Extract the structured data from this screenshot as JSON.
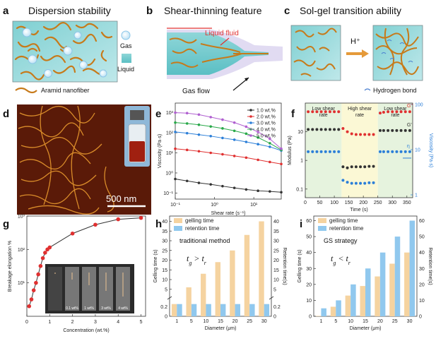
{
  "panels": {
    "a": {
      "letter": "a",
      "title": "Dispersion stability",
      "gas": "Gas",
      "liquid": "Liquid",
      "fiber": "Aramid nanofiber"
    },
    "b": {
      "letter": "b",
      "title": "Shear-thinning feature",
      "liquid_fluid": "Liquid fluid",
      "gas_flow": "Gas flow"
    },
    "c": {
      "letter": "c",
      "title": "Sol-gel transition ability",
      "proton": "H⁺",
      "bond": "Hydrogen bond"
    },
    "d": {
      "letter": "d",
      "scalebar": "500 nm"
    },
    "g": {
      "letter": "g",
      "insets": [
        "0.1 wt%",
        "1 wt%",
        "3 wt%",
        "4 wt%"
      ]
    },
    "h": {
      "letter": "h",
      "method": "traditional method",
      "relation": "t_g > t_r"
    },
    "i": {
      "letter": "i",
      "method": "GS strategy",
      "relation": "t_g < t_r"
    }
  },
  "colors": {
    "aramid": "#c77a1a",
    "liquid": "#5bbfc4",
    "gelling": "#f5d3a0",
    "retention": "#90c8ee",
    "red": "#e03030",
    "blue": "#2c7fd8",
    "black": "#333333"
  },
  "chart_data": [
    {
      "panel": "e",
      "type": "line",
      "xscale": "log",
      "yscale": "log",
      "xlabel": "Shear rate (s⁻¹)",
      "ylabel": "Viscosity (Pa·s)",
      "xlim": [
        0.1,
        50
      ],
      "ylim": [
        0.05,
        3000
      ],
      "xticks": [
        {
          "v": 0.1,
          "t": "10⁻¹"
        },
        {
          "v": 1,
          "t": "10⁰"
        },
        {
          "v": 10,
          "t": "10¹"
        }
      ],
      "yticks": [
        {
          "v": 0.1,
          "t": "10⁻¹"
        },
        {
          "v": 1,
          "t": "10⁰"
        },
        {
          "v": 10,
          "t": "10¹"
        },
        {
          "v": 100,
          "t": "10²"
        },
        {
          "v": 1000,
          "t": "10³"
        }
      ],
      "x": [
        0.1,
        0.2,
        0.4,
        0.8,
        1.6,
        3.2,
        6.4,
        12.8,
        25.6,
        50
      ],
      "series": [
        {
          "name": "1.0 wt.%",
          "color": "#333333",
          "values": [
            0.5,
            0.4,
            0.32,
            0.27,
            0.22,
            0.18,
            0.15,
            0.13,
            0.12,
            0.11
          ]
        },
        {
          "name": "2.0 wt.%",
          "color": "#e03030",
          "values": [
            16,
            14,
            12,
            10,
            8.5,
            7,
            5.8,
            4.5,
            3.5,
            2.8
          ]
        },
        {
          "name": "3.0 wt.%",
          "color": "#2c7fd8",
          "values": [
            110,
            95,
            80,
            68,
            55,
            45,
            35,
            27,
            20,
            13
          ]
        },
        {
          "name": "4.0 wt.%",
          "color": "#2aa94a",
          "values": [
            320,
            290,
            250,
            205,
            165,
            125,
            90,
            58,
            30,
            14
          ]
        },
        {
          "name": "5.0 wt.%",
          "color": "#b060d0",
          "values": [
            1000,
            950,
            800,
            600,
            450,
            320,
            200,
            110,
            50,
            16
          ]
        }
      ]
    },
    {
      "panel": "f",
      "type": "scatter",
      "yscale": "log",
      "xlabel": "Time (s)",
      "ylabel": "Modulus (Pa)",
      "y2label": "Viscosity (Pa·s)",
      "xlim": [
        0,
        370
      ],
      "ylim": [
        0.05,
        100
      ],
      "y2lim": [
        1,
        100
      ],
      "xticks": [
        0,
        50,
        100,
        150,
        200,
        250,
        300,
        350
      ],
      "yticks": [
        {
          "v": 0.1,
          "t": "0.1"
        },
        {
          "v": 1,
          "t": "1"
        },
        {
          "v": 10,
          "t": "10"
        }
      ],
      "y2ticks": [
        {
          "v": 1,
          "t": "1"
        },
        {
          "v": 10,
          "t": "10"
        },
        {
          "v": 100,
          "t": "100"
        }
      ],
      "regions": [
        {
          "label": "Low shear rate",
          "from": 0,
          "to": 125,
          "color": "#e6f3de"
        },
        {
          "label": "High shear rate",
          "from": 125,
          "to": 250,
          "color": "#fbf8d5"
        },
        {
          "label": "Low shear rate",
          "from": 250,
          "to": 370,
          "color": "#e6f3de"
        }
      ],
      "series": [
        {
          "name": "G''",
          "axis": "left",
          "color": "#e03030",
          "points": [
            [
              10,
              50
            ],
            [
              25,
              50
            ],
            [
              40,
              50
            ],
            [
              55,
              50
            ],
            [
              70,
              50
            ],
            [
              85,
              50
            ],
            [
              100,
              50
            ],
            [
              115,
              50
            ],
            [
              130,
              13
            ],
            [
              145,
              10
            ],
            [
              160,
              8.5
            ],
            [
              175,
              8
            ],
            [
              190,
              8
            ],
            [
              205,
              8
            ],
            [
              220,
              8
            ],
            [
              235,
              8
            ],
            [
              258,
              45
            ],
            [
              270,
              48
            ],
            [
              285,
              50
            ],
            [
              300,
              50
            ],
            [
              315,
              50
            ],
            [
              330,
              50
            ],
            [
              345,
              50
            ],
            [
              360,
              50
            ]
          ]
        },
        {
          "name": "G'",
          "axis": "left",
          "color": "#333333",
          "points": [
            [
              10,
              12
            ],
            [
              25,
              12
            ],
            [
              40,
              12
            ],
            [
              55,
              12
            ],
            [
              70,
              12
            ],
            [
              85,
              12
            ],
            [
              100,
              12
            ],
            [
              115,
              12
            ],
            [
              130,
              0.6
            ],
            [
              145,
              0.55
            ],
            [
              160,
              0.6
            ],
            [
              175,
              0.6
            ],
            [
              190,
              0.6
            ],
            [
              205,
              0.6
            ],
            [
              220,
              0.62
            ],
            [
              235,
              0.62
            ],
            [
              258,
              11
            ],
            [
              270,
              11
            ],
            [
              285,
              11
            ],
            [
              300,
              11
            ],
            [
              315,
              11
            ],
            [
              330,
              11
            ],
            [
              345,
              11
            ],
            [
              360,
              11
            ]
          ]
        },
        {
          "name": "η",
          "axis": "right",
          "color": "#2c7fd8",
          "points": [
            [
              10,
              9
            ],
            [
              25,
              9
            ],
            [
              40,
              9
            ],
            [
              55,
              9
            ],
            [
              70,
              9
            ],
            [
              85,
              9
            ],
            [
              100,
              9
            ],
            [
              115,
              9
            ],
            [
              130,
              2.1
            ],
            [
              145,
              1.9
            ],
            [
              160,
              1.8
            ],
            [
              175,
              1.8
            ],
            [
              190,
              1.8
            ],
            [
              205,
              1.8
            ],
            [
              220,
              1.85
            ],
            [
              235,
              1.85
            ],
            [
              258,
              9
            ],
            [
              270,
              9
            ],
            [
              285,
              9
            ],
            [
              300,
              9
            ],
            [
              315,
              9
            ],
            [
              330,
              9
            ],
            [
              345,
              9
            ],
            [
              360,
              9
            ]
          ]
        }
      ]
    },
    {
      "panel": "g",
      "type": "line",
      "xlabel": "Concentration (wt.%)",
      "ylabel": "Breakage elongation %",
      "xlim": [
        0,
        5.2
      ],
      "ylim": [
        1,
        1000
      ],
      "yscale": "log",
      "xticks": [
        0,
        1,
        2,
        3,
        4,
        5
      ],
      "yticks": [
        {
          "v": 10,
          "t": "10¹"
        },
        {
          "v": 100,
          "t": "10²"
        },
        {
          "v": 1000,
          "t": "10³"
        }
      ],
      "x": [
        0.1,
        0.2,
        0.3,
        0.4,
        0.5,
        0.6,
        0.7,
        0.8,
        0.9,
        1.0,
        2.0,
        3.0,
        4.0,
        5.0
      ],
      "values": [
        2,
        3.2,
        6,
        10,
        18,
        32,
        55,
        80,
        100,
        115,
        300,
        550,
        800,
        880
      ]
    },
    {
      "panel": "h",
      "type": "bar",
      "xlabel": "Diameter (μm)",
      "ylabel": "Gelling time (s)",
      "y2label": "Retention time(s)",
      "categories": [
        "1",
        "5",
        "10",
        "15",
        "20",
        "25",
        "30"
      ],
      "ylim": [
        0,
        42
      ],
      "y2lim": [
        0,
        42
      ],
      "yticks_lower": [
        0,
        0.2
      ],
      "yticks_upper": [
        5,
        10,
        15,
        20,
        25,
        30,
        35,
        40
      ],
      "legend": "top-left",
      "series": [
        {
          "name": "gelling time",
          "color": "#f5d3a0",
          "values": [
            0.26,
            6,
            13,
            19,
            25,
            33,
            40
          ]
        },
        {
          "name": "retention time",
          "color": "#90c8ee",
          "values": [
            0.26,
            0.26,
            0.26,
            0.26,
            0.26,
            0.26,
            0.26
          ]
        }
      ]
    },
    {
      "panel": "i",
      "type": "bar",
      "xlabel": "Diameter (μm)",
      "ylabel": "Gelling time (s)",
      "y2label": "Retention time(s)",
      "categories": [
        "1",
        "5",
        "10",
        "15",
        "20",
        "25",
        "30"
      ],
      "ylim": [
        0,
        62
      ],
      "y2lim": [
        0,
        62
      ],
      "yticks": [
        0,
        10,
        20,
        30,
        40,
        50,
        60
      ],
      "legend": "top-left",
      "series": [
        {
          "name": "gelling time",
          "color": "#f5d3a0",
          "values": [
            0.26,
            6,
            13,
            19,
            25,
            33,
            40
          ]
        },
        {
          "name": "retention time",
          "color": "#90c8ee",
          "values": [
            5,
            10,
            20,
            30,
            40,
            50,
            60
          ]
        }
      ]
    }
  ]
}
